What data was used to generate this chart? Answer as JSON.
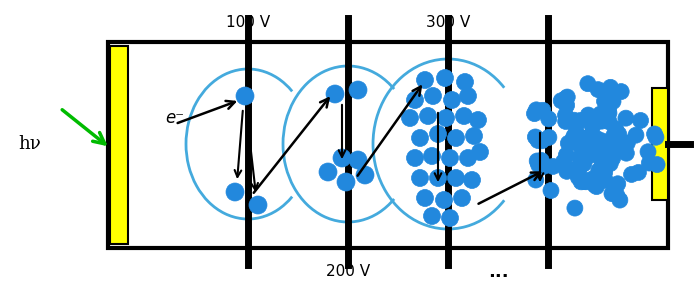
{
  "fig_width": 7.0,
  "fig_height": 2.94,
  "dpi": 100,
  "bg_color": "#ffffff",
  "photocathode_color": "#ffff00",
  "anode_color": "#ffff00",
  "electron_fill": "#2288dd",
  "electron_edge": "#1166bb",
  "arc_color": "#44aadd",
  "green_color": "#00bb00",
  "black": "#000000",
  "tube_lw": 3.0,
  "dynode_lw": 5.0,
  "hv_label": "hν",
  "eminus_label": "e⁻"
}
